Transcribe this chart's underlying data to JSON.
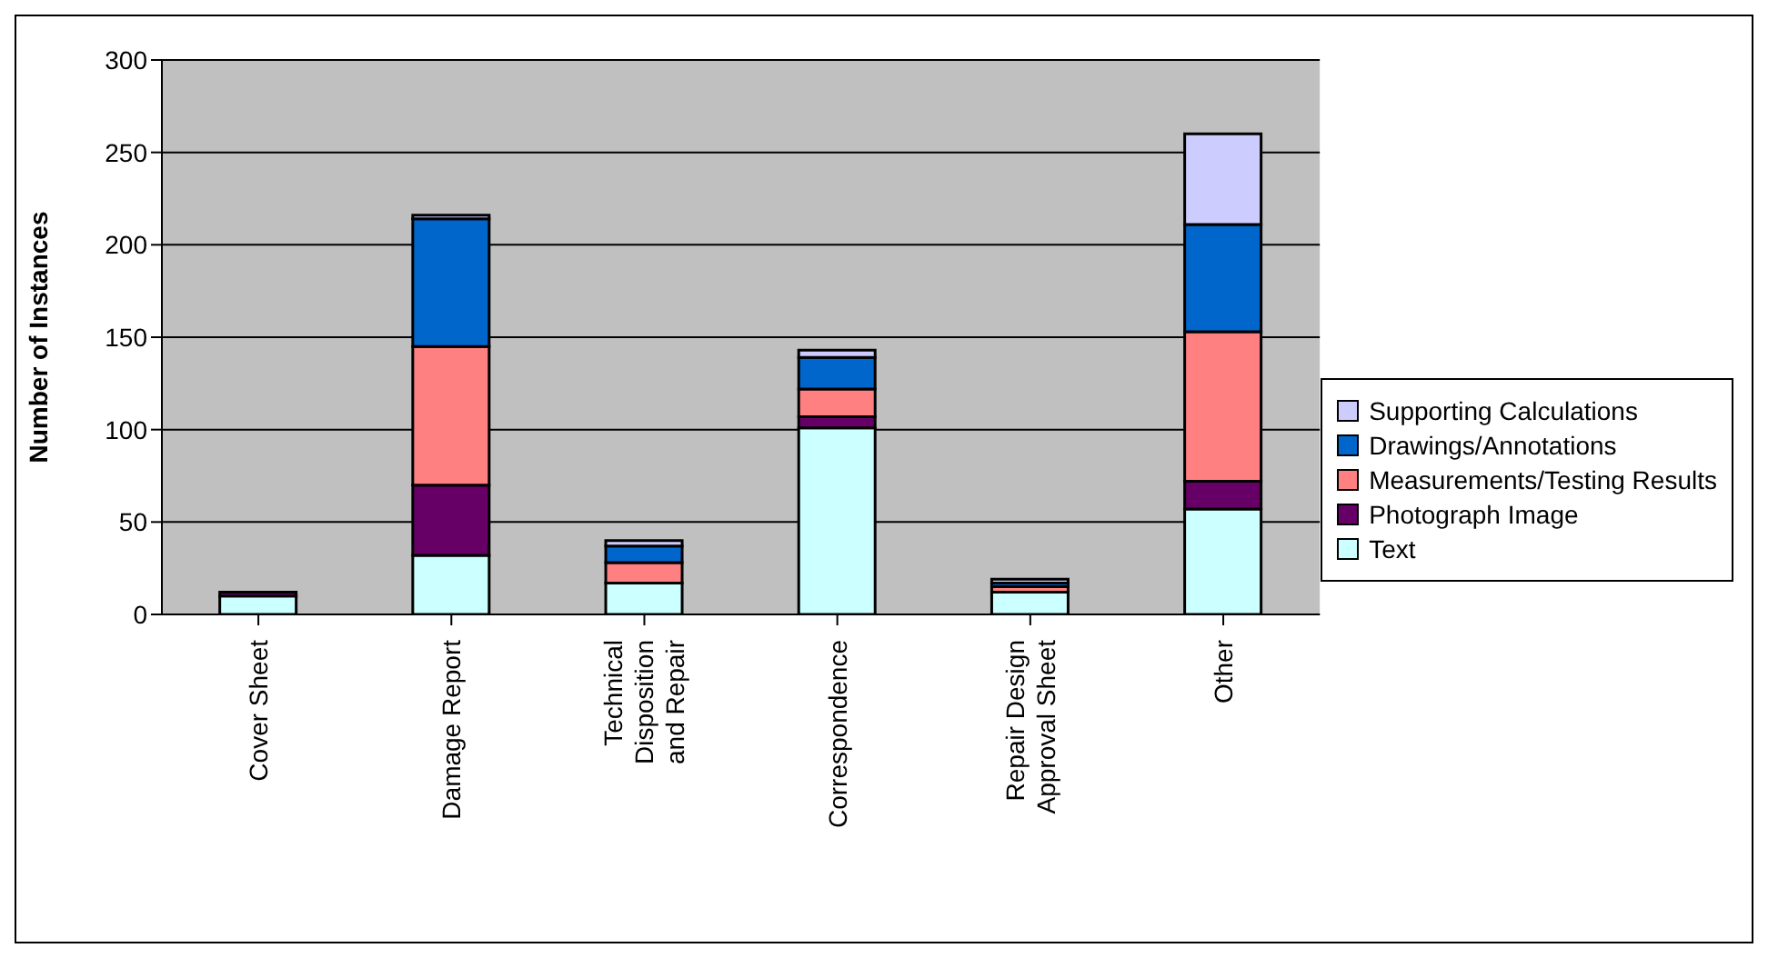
{
  "chart_data": {
    "type": "bar",
    "stacked": true,
    "ylabel": "Number of Instances",
    "categories": [
      "Cover Sheet",
      "Damage Report",
      "Technical Disposition and Repair",
      "Correspondence",
      "Repair Design Approval Sheet",
      "Other"
    ],
    "series": [
      {
        "name": "Text",
        "color": "#ccffff",
        "values": [
          10,
          32,
          17,
          101,
          12,
          57
        ]
      },
      {
        "name": "Photograph Image",
        "color": "#660066",
        "values": [
          2,
          38,
          0,
          6,
          0,
          15
        ]
      },
      {
        "name": "Measurements/Testing Results",
        "color": "#ff8080",
        "values": [
          0,
          75,
          11,
          15,
          3,
          81
        ]
      },
      {
        "name": "Drawings/Annotations",
        "color": "#0066cc",
        "values": [
          0,
          69,
          9,
          17,
          2,
          58
        ]
      },
      {
        "name": "Supporting Calculations",
        "color": "#ccccff",
        "values": [
          0,
          2,
          3,
          4,
          2,
          49
        ]
      }
    ],
    "ylim": [
      0,
      300
    ],
    "yticks": [
      0,
      50,
      100,
      150,
      200,
      250,
      300
    ],
    "grid": "y",
    "legend": "right"
  }
}
